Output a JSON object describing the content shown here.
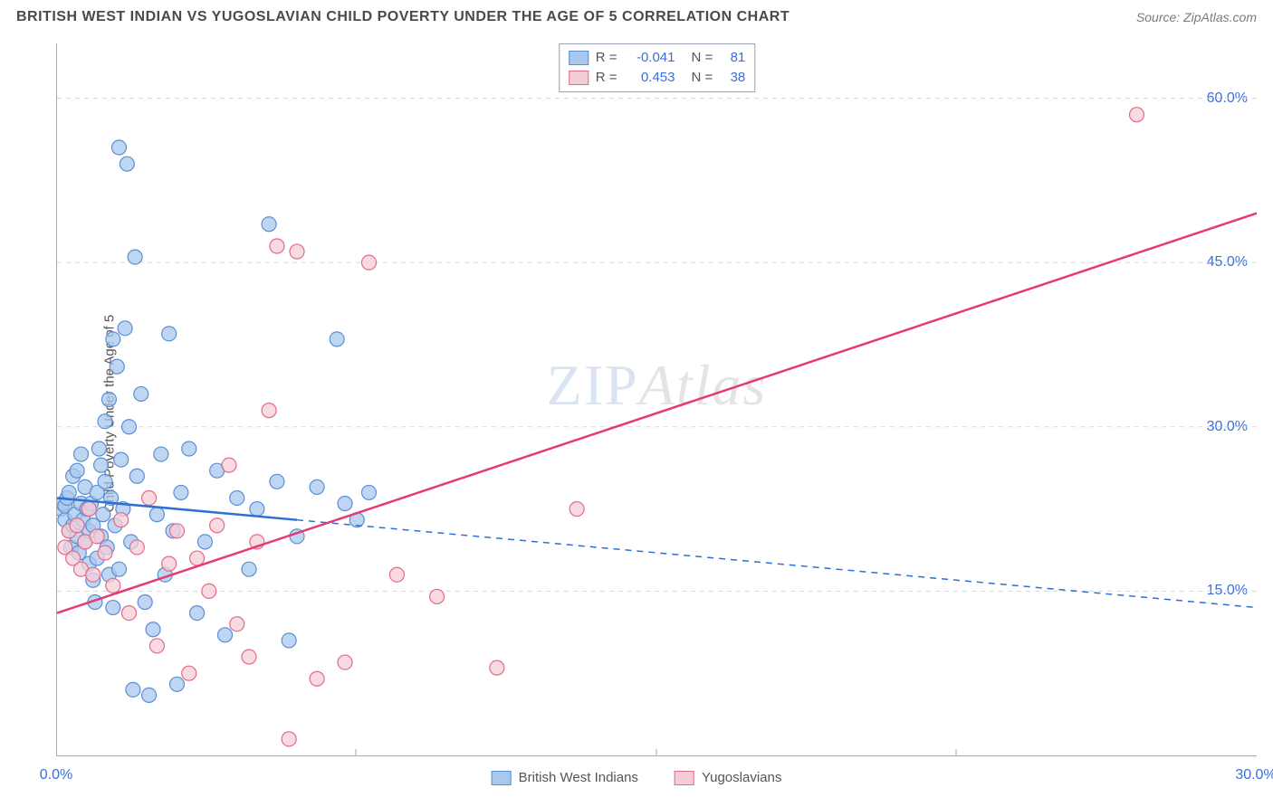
{
  "header": {
    "title": "BRITISH WEST INDIAN VS YUGOSLAVIAN CHILD POVERTY UNDER THE AGE OF 5 CORRELATION CHART",
    "source": "Source: ZipAtlas.com"
  },
  "chart": {
    "type": "scatter",
    "ylabel": "Child Poverty Under the Age of 5",
    "watermark": {
      "part1": "ZIP",
      "part2": "Atlas"
    },
    "background_color": "#ffffff",
    "grid_color": "#d7d7d7",
    "axis_color": "#aaaaaa",
    "tick_color": "#3b6fd6",
    "tick_fontsize": 16,
    "label_fontsize": 15,
    "xlim": [
      0,
      30
    ],
    "ylim": [
      0,
      65
    ],
    "xticks": [
      {
        "value": 0,
        "label": "0.0%"
      },
      {
        "value": 30,
        "label": "30.0%"
      }
    ],
    "xtick_marks": [
      7.5,
      15,
      22.5
    ],
    "yticks": [
      {
        "value": 15,
        "label": "15.0%"
      },
      {
        "value": 30,
        "label": "30.0%"
      },
      {
        "value": 45,
        "label": "45.0%"
      },
      {
        "value": 60,
        "label": "60.0%"
      }
    ],
    "series": [
      {
        "id": "bwi",
        "label": "British West Indians",
        "marker_fill": "#a8c8ee",
        "marker_stroke": "#5b8ed6",
        "marker_radius": 8,
        "marker_opacity": 0.75,
        "line_color": "#2e6fd6",
        "line_width": 2.5,
        "line_dash_after_x": 6.0,
        "regression": {
          "x1": 0,
          "y1": 23.5,
          "x2": 30,
          "y2": 13.5
        },
        "R": "-0.041",
        "N": "81",
        "points": [
          [
            0.1,
            22.5
          ],
          [
            0.15,
            23.0
          ],
          [
            0.2,
            21.5
          ],
          [
            0.2,
            22.8
          ],
          [
            0.25,
            23.5
          ],
          [
            0.3,
            20.5
          ],
          [
            0.3,
            24.0
          ],
          [
            0.35,
            19.0
          ],
          [
            0.4,
            21.0
          ],
          [
            0.4,
            25.5
          ],
          [
            0.45,
            22.0
          ],
          [
            0.5,
            20.0
          ],
          [
            0.5,
            26.0
          ],
          [
            0.55,
            18.5
          ],
          [
            0.6,
            23.0
          ],
          [
            0.6,
            27.5
          ],
          [
            0.65,
            21.5
          ],
          [
            0.7,
            24.5
          ],
          [
            0.7,
            19.5
          ],
          [
            0.75,
            22.5
          ],
          [
            0.8,
            17.5
          ],
          [
            0.8,
            20.5
          ],
          [
            0.85,
            23.0
          ],
          [
            0.9,
            16.0
          ],
          [
            0.9,
            21.0
          ],
          [
            0.95,
            14.0
          ],
          [
            1.0,
            24.0
          ],
          [
            1.0,
            18.0
          ],
          [
            1.05,
            28.0
          ],
          [
            1.1,
            20.0
          ],
          [
            1.1,
            26.5
          ],
          [
            1.15,
            22.0
          ],
          [
            1.2,
            25.0
          ],
          [
            1.2,
            30.5
          ],
          [
            1.25,
            19.0
          ],
          [
            1.3,
            32.5
          ],
          [
            1.3,
            16.5
          ],
          [
            1.35,
            23.5
          ],
          [
            1.4,
            38.0
          ],
          [
            1.4,
            13.5
          ],
          [
            1.45,
            21.0
          ],
          [
            1.5,
            35.5
          ],
          [
            1.55,
            55.5
          ],
          [
            1.55,
            17.0
          ],
          [
            1.6,
            27.0
          ],
          [
            1.65,
            22.5
          ],
          [
            1.7,
            39.0
          ],
          [
            1.75,
            54.0
          ],
          [
            1.8,
            30.0
          ],
          [
            1.85,
            19.5
          ],
          [
            1.9,
            6.0
          ],
          [
            1.95,
            45.5
          ],
          [
            2.0,
            25.5
          ],
          [
            2.1,
            33.0
          ],
          [
            2.2,
            14.0
          ],
          [
            2.3,
            5.5
          ],
          [
            2.4,
            11.5
          ],
          [
            2.5,
            22.0
          ],
          [
            2.6,
            27.5
          ],
          [
            2.7,
            16.5
          ],
          [
            2.8,
            38.5
          ],
          [
            2.9,
            20.5
          ],
          [
            3.0,
            6.5
          ],
          [
            3.1,
            24.0
          ],
          [
            3.3,
            28.0
          ],
          [
            3.5,
            13.0
          ],
          [
            3.7,
            19.5
          ],
          [
            4.0,
            26.0
          ],
          [
            4.2,
            11.0
          ],
          [
            4.5,
            23.5
          ],
          [
            4.8,
            17.0
          ],
          [
            5.0,
            22.5
          ],
          [
            5.3,
            48.5
          ],
          [
            5.5,
            25.0
          ],
          [
            5.8,
            10.5
          ],
          [
            6.0,
            20.0
          ],
          [
            6.5,
            24.5
          ],
          [
            7.0,
            38.0
          ],
          [
            7.2,
            23.0
          ],
          [
            7.5,
            21.5
          ],
          [
            7.8,
            24.0
          ]
        ]
      },
      {
        "id": "yugo",
        "label": "Yugoslavians",
        "marker_fill": "#f5cdd7",
        "marker_stroke": "#e26a8a",
        "marker_radius": 8,
        "marker_opacity": 0.75,
        "line_color": "#e63b72",
        "line_width": 2.5,
        "line_dash_after_x": null,
        "regression": {
          "x1": 0,
          "y1": 13.0,
          "x2": 30,
          "y2": 49.5
        },
        "R": "0.453",
        "N": "38",
        "points": [
          [
            0.2,
            19.0
          ],
          [
            0.3,
            20.5
          ],
          [
            0.4,
            18.0
          ],
          [
            0.5,
            21.0
          ],
          [
            0.6,
            17.0
          ],
          [
            0.7,
            19.5
          ],
          [
            0.8,
            22.5
          ],
          [
            0.9,
            16.5
          ],
          [
            1.0,
            20.0
          ],
          [
            1.2,
            18.5
          ],
          [
            1.4,
            15.5
          ],
          [
            1.6,
            21.5
          ],
          [
            1.8,
            13.0
          ],
          [
            2.0,
            19.0
          ],
          [
            2.3,
            23.5
          ],
          [
            2.5,
            10.0
          ],
          [
            2.8,
            17.5
          ],
          [
            3.0,
            20.5
          ],
          [
            3.3,
            7.5
          ],
          [
            3.5,
            18.0
          ],
          [
            3.8,
            15.0
          ],
          [
            4.0,
            21.0
          ],
          [
            4.3,
            26.5
          ],
          [
            4.5,
            12.0
          ],
          [
            4.8,
            9.0
          ],
          [
            5.0,
            19.5
          ],
          [
            5.3,
            31.5
          ],
          [
            5.5,
            46.5
          ],
          [
            5.8,
            1.5
          ],
          [
            6.0,
            46.0
          ],
          [
            6.5,
            7.0
          ],
          [
            7.2,
            8.5
          ],
          [
            7.8,
            45.0
          ],
          [
            8.5,
            16.5
          ],
          [
            9.5,
            14.5
          ],
          [
            11.0,
            8.0
          ],
          [
            13.0,
            22.5
          ],
          [
            27.0,
            58.5
          ]
        ]
      }
    ],
    "legend_top": {
      "border_color": "#9aa0b4",
      "r_label": "R =",
      "n_label": "N =",
      "value_color": "#3b6fd6",
      "text_color": "#555"
    },
    "legend_bottom": {
      "text_color": "#555"
    }
  }
}
